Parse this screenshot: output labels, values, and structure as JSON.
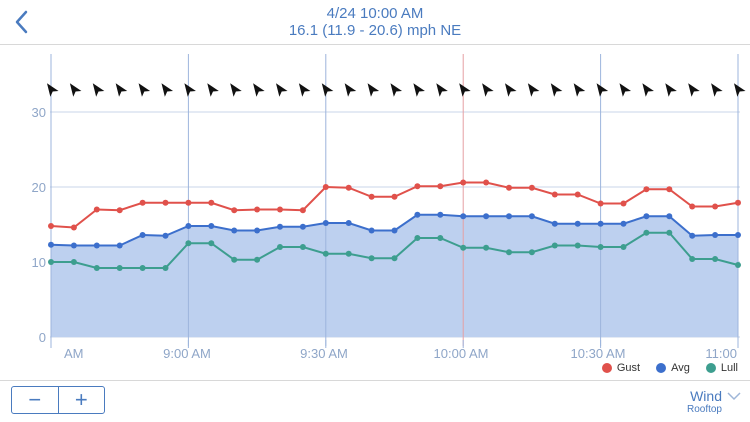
{
  "header": {
    "time": "4/24 10:00 AM",
    "reading": "16.1 (11.9 - 20.6) mph NE"
  },
  "legend": [
    {
      "name": "Gust",
      "color": "#e0514b"
    },
    {
      "name": "Avg",
      "color": "#3c6fcc"
    },
    {
      "name": "Lull",
      "color": "#3d9e8f"
    }
  ],
  "controls": {
    "zoom_out": "−",
    "zoom_in": "+"
  },
  "metric": {
    "name": "Wind",
    "location": "Rooftop"
  },
  "chart_data": {
    "type": "line",
    "x_labels": [
      "AM",
      "9:00 AM",
      "9:30 AM",
      "10:00 AM",
      "10:30 AM",
      "11:00"
    ],
    "y_ticks": [
      0,
      10,
      20,
      30
    ],
    "ylim": [
      0,
      35
    ],
    "selected_index": 18,
    "series": [
      {
        "name": "Gust",
        "color": "#e0514b",
        "values": [
          14.8,
          14.6,
          17.0,
          16.9,
          17.9,
          17.9,
          17.9,
          17.9,
          16.9,
          17.0,
          17.0,
          16.9,
          20.0,
          19.9,
          18.7,
          18.7,
          20.1,
          20.1,
          20.6,
          20.6,
          19.9,
          19.9,
          19.0,
          19.0,
          17.8,
          17.8,
          19.7,
          19.7,
          17.4,
          17.4,
          17.9
        ]
      },
      {
        "name": "Avg",
        "color": "#3c6fcc",
        "values": [
          12.3,
          12.2,
          12.2,
          12.2,
          13.6,
          13.5,
          14.8,
          14.8,
          14.2,
          14.2,
          14.7,
          14.7,
          15.2,
          15.2,
          14.2,
          14.2,
          16.3,
          16.3,
          16.1,
          16.1,
          16.1,
          16.1,
          15.1,
          15.1,
          15.1,
          15.1,
          16.1,
          16.1,
          13.5,
          13.6,
          13.6
        ]
      },
      {
        "name": "Lull",
        "color": "#3d9e8f",
        "values": [
          10.0,
          10.0,
          9.2,
          9.2,
          9.2,
          9.2,
          12.5,
          12.5,
          10.3,
          10.3,
          12.0,
          12.0,
          11.1,
          11.1,
          10.5,
          10.5,
          13.2,
          13.2,
          11.9,
          11.9,
          11.3,
          11.3,
          12.2,
          12.2,
          12.0,
          12.0,
          13.9,
          13.9,
          10.4,
          10.4,
          9.6
        ]
      }
    ],
    "direction": "NE"
  }
}
